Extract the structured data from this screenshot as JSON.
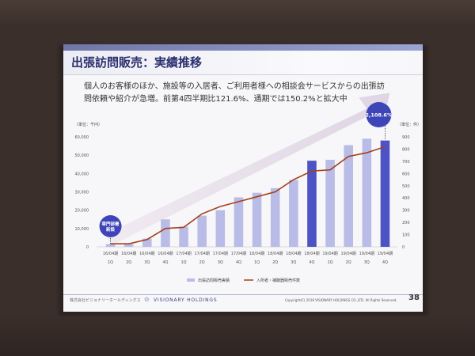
{
  "slide": {
    "title": "出張訪問販売：実績推移",
    "description_lines": [
      "個人のお客様のほか、施設等の入居者、ご利用者様への相談会サービスからの出張訪",
      "問依頼や紹介が急増。前第4四半期比121.6%、通期では150.2%と拡大中"
    ],
    "footer_company": "株式会社ビジョナリーホールディングス",
    "footer_logo_text": "VISIONARY HOLDINGS",
    "copyright": "Copyright(C) 2018 VISIONARY HOLDINGS CO.,LTD. All Rights Reserved.",
    "page_number": "38",
    "logo_icon": "star-icon"
  },
  "chart_data": {
    "type": "bar",
    "categories": [
      [
        "16/04期",
        "1Q"
      ],
      [
        "16/04期",
        "2Q"
      ],
      [
        "16/04期",
        "3Q"
      ],
      [
        "16/04期",
        "4Q"
      ],
      [
        "17/04期",
        "1Q"
      ],
      [
        "17/04期",
        "2Q"
      ],
      [
        "17/04期",
        "3Q"
      ],
      [
        "17/04期",
        "4Q"
      ],
      [
        "18/04期",
        "1Q"
      ],
      [
        "18/04期",
        "2Q"
      ],
      [
        "18/04期",
        "3Q"
      ],
      [
        "18/04期",
        "4Q"
      ],
      [
        "19/04期",
        "1Q"
      ],
      [
        "19/04期",
        "2Q"
      ],
      [
        "19/04期",
        "3Q"
      ],
      [
        "19/04期",
        "4Q"
      ]
    ],
    "series": [
      {
        "name": "出張訪問販売実績",
        "type": "bar",
        "axis": "left",
        "values": [
          1500,
          1500,
          4500,
          15000,
          11000,
          17000,
          20000,
          27000,
          29500,
          32000,
          36500,
          47000,
          47500,
          55500,
          59000,
          58000
        ],
        "highlight_indices": [
          11,
          15
        ]
      },
      {
        "name": "入所者・補聴器販売件数",
        "type": "line",
        "axis": "right",
        "values": [
          25,
          25,
          60,
          150,
          160,
          270,
          330,
          370,
          410,
          450,
          550,
          620,
          630,
          740,
          770,
          820
        ]
      }
    ],
    "ylabel_left": "（単位：千円）",
    "ylabel_right": "（単位：件）",
    "ylim_left": [
      0,
      60000
    ],
    "yticks_left": [
      "0",
      "10,000",
      "20,000",
      "30,000",
      "40,000",
      "50,000",
      "60,000"
    ],
    "ylim_right": [
      0,
      900
    ],
    "yticks_right": [
      "0",
      "100",
      "200",
      "300",
      "400",
      "500",
      "600",
      "700",
      "800",
      "900"
    ],
    "annotations": {
      "start_label_lines": [
        "専門部署",
        "新設"
      ],
      "end_value": "2,108.6%"
    },
    "colors": {
      "bar": "#b8bce6",
      "bar_highlight": "#4d52c4",
      "line": "#a5401a",
      "arrow": "#e2d5e0",
      "badge": "#3e45b8"
    },
    "legend_position": "bottom",
    "grid": false
  }
}
